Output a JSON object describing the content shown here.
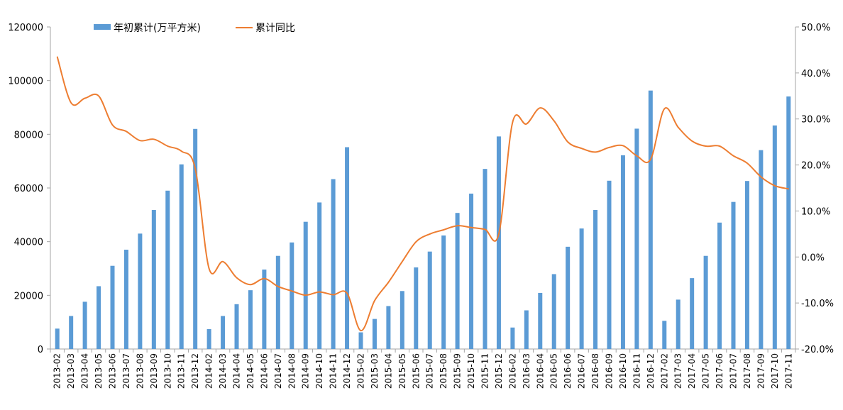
{
  "chart_data": {
    "type": "bar",
    "categories": [
      "2013-02",
      "2013-03",
      "2013-04",
      "2013-05",
      "2013-06",
      "2013-07",
      "2013-08",
      "2013-09",
      "2013-10",
      "2013-11",
      "2013-12",
      "2014-02",
      "2014-03",
      "2014-04",
      "2014-05",
      "2014-06",
      "2014-07",
      "2014-08",
      "2014-09",
      "2014-10",
      "2014-11",
      "2014-12",
      "2015-02",
      "2015-03",
      "2015-04",
      "2015-05",
      "2015-06",
      "2015-07",
      "2015-08",
      "2015-09",
      "2015-10",
      "2015-11",
      "2015-12",
      "2016-02",
      "2016-03",
      "2016-04",
      "2016-05",
      "2016-06",
      "2016-07",
      "2016-08",
      "2016-09",
      "2016-10",
      "2016-11",
      "2016-12",
      "2017-02",
      "2017-03",
      "2017-04",
      "2017-05",
      "2017-06",
      "2017-07",
      "2017-08",
      "2017-09",
      "2017-10",
      "2017-11"
    ],
    "series": [
      {
        "name": "年初累计(万平方米)",
        "type": "bar",
        "axis": "left",
        "color": "#5B9BD5",
        "values": [
          7600,
          12300,
          17600,
          23400,
          31000,
          37000,
          43000,
          51800,
          59000,
          68800,
          82000,
          7400,
          12300,
          16700,
          21900,
          29600,
          34700,
          39700,
          47400,
          54600,
          63300,
          75200,
          6200,
          11200,
          16000,
          21600,
          30400,
          36300,
          42300,
          50700,
          57900,
          67100,
          79200,
          8000,
          14400,
          20900,
          27900,
          38100,
          44900,
          51800,
          62700,
          72200,
          82100,
          96300,
          10500,
          18400,
          26400,
          34700,
          47100,
          54800,
          62600,
          74100,
          83300,
          94100
        ]
      },
      {
        "name": "累计同比",
        "type": "line",
        "axis": "right",
        "color": "#ED7D31",
        "values": [
          43.5,
          33.5,
          34.5,
          35,
          28.7,
          27.3,
          25.3,
          25.6,
          24.1,
          23,
          19.2,
          -2.5,
          -1,
          -4.5,
          -6,
          -4.7,
          -6.4,
          -7.4,
          -8.3,
          -7.6,
          -8.2,
          -7.9,
          -16,
          -9.5,
          -5.5,
          -1,
          3.3,
          5,
          5.9,
          6.8,
          6.4,
          6,
          5,
          29.3,
          28.9,
          32.4,
          29.6,
          25,
          23.6,
          22.8,
          23.8,
          24.2,
          22,
          21.2,
          32.2,
          28.2,
          25.2,
          24.1,
          24.1,
          22,
          20.4,
          17.4,
          15.5,
          14.8
        ]
      }
    ],
    "yAxisLeft": {
      "min": 0,
      "max": 120000,
      "ticks": [
        "0",
        "20000",
        "40000",
        "60000",
        "80000",
        "100000",
        "120000"
      ]
    },
    "yAxisRight": {
      "min": -20,
      "max": 50,
      "ticks": [
        "-20.0%",
        "-10.0%",
        "0.0%",
        "10.0%",
        "20.0%",
        "30.0%",
        "40.0%",
        "50.0%"
      ]
    },
    "legend": {
      "position": "top-left"
    },
    "grid": false,
    "title": "",
    "xlabel": "",
    "ylabel": ""
  },
  "colors": {
    "axis": "#A6A6A6"
  }
}
